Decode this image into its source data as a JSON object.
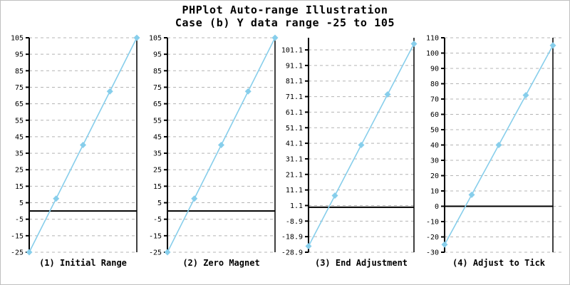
{
  "title": {
    "line1": "PHPlot Auto-range Illustration",
    "line2": "Case (b) Y data range -25 to 105"
  },
  "colors": {
    "line": "#87ceeb",
    "marker": "#87ceeb",
    "grid": "#b4b4b4",
    "axis": "#000000",
    "zero_line": "#000000",
    "background": "#ffffff",
    "frame_border": "#c0c0c0",
    "text": "#000000"
  },
  "chart_data": [
    {
      "type": "line",
      "title": "(1) Initial Range",
      "x": [
        0,
        1,
        2,
        3,
        4
      ],
      "values": [
        -25,
        7.5,
        40,
        72.5,
        105
      ],
      "ylim": [
        -25,
        105
      ],
      "ytick_values": [
        105,
        95,
        85,
        75,
        65,
        55,
        45,
        35,
        25,
        15,
        5,
        -5,
        -15,
        -25
      ],
      "ytick_labels": [
        "105",
        "95",
        "85",
        "75",
        "65",
        "55",
        "45",
        "35",
        "25",
        "15",
        "5",
        "-5",
        "-15",
        "-25"
      ],
      "zero_line_at": 0,
      "grid": "dashed-horizontal",
      "marker": "diamond",
      "legend_position": "none"
    },
    {
      "type": "line",
      "title": "(2) Zero Magnet",
      "x": [
        0,
        1,
        2,
        3,
        4
      ],
      "values": [
        -25,
        7.5,
        40,
        72.5,
        105
      ],
      "ylim": [
        -25,
        105
      ],
      "ytick_values": [
        105,
        95,
        85,
        75,
        65,
        55,
        45,
        35,
        25,
        15,
        5,
        -5,
        -15,
        -25
      ],
      "ytick_labels": [
        "105",
        "95",
        "85",
        "75",
        "65",
        "55",
        "45",
        "35",
        "25",
        "15",
        "5",
        "-5",
        "-15",
        "-25"
      ],
      "zero_line_at": 0,
      "grid": "dashed-horizontal",
      "marker": "diamond",
      "legend_position": "none"
    },
    {
      "type": "line",
      "title": "(3) End Adjustment",
      "x": [
        0,
        1,
        2,
        3,
        4
      ],
      "values": [
        -25,
        7.5,
        40,
        72.5,
        105
      ],
      "ylim": [
        -28.9,
        108.9
      ],
      "ytick_values": [
        101.1,
        91.1,
        81.1,
        71.1,
        61.1,
        51.1,
        41.1,
        31.1,
        21.1,
        11.1,
        1.1,
        -8.9,
        -18.9,
        -28.9
      ],
      "ytick_labels": [
        "101.1",
        "91.1",
        "81.1",
        "71.1",
        "61.1",
        "51.1",
        "41.1",
        "31.1",
        "21.1",
        "11.1",
        "1.1",
        "-8.9",
        "-18.9",
        "-28.9"
      ],
      "zero_line_at": 0,
      "grid": "dashed-horizontal",
      "marker": "diamond",
      "legend_position": "none"
    },
    {
      "type": "line",
      "title": "(4) Adjust to Tick",
      "x": [
        0,
        1,
        2,
        3,
        4
      ],
      "values": [
        -25,
        7.5,
        40,
        72.5,
        105
      ],
      "ylim": [
        -30,
        110
      ],
      "ytick_values": [
        110,
        100,
        90,
        80,
        70,
        60,
        50,
        40,
        30,
        20,
        10,
        0,
        -10,
        -20,
        -30
      ],
      "ytick_labels": [
        "110",
        "100",
        "90",
        "80",
        "70",
        "60",
        "50",
        "40",
        "30",
        "20",
        "10",
        "0",
        "-10",
        "-20",
        "-30"
      ],
      "zero_line_at": 0,
      "grid": "dashed-horizontal",
      "marker": "diamond",
      "legend_position": "none"
    }
  ]
}
